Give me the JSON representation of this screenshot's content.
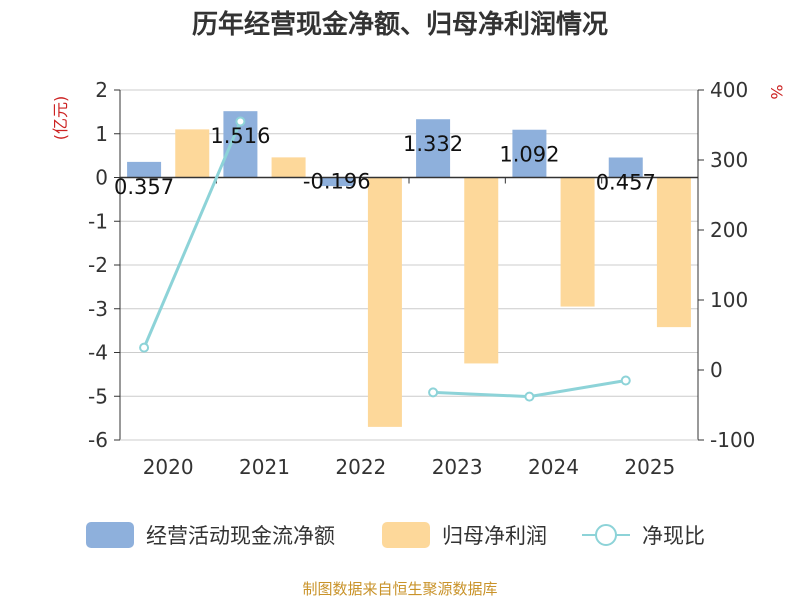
{
  "chart_data": {
    "type": "bar",
    "title": "历年经营现金净额、归母净利润情况",
    "categories": [
      "2020",
      "2021",
      "2022",
      "2023",
      "2024",
      "2025"
    ],
    "series": [
      {
        "name": "经营活动现金流净额",
        "type": "bar",
        "axis": "left",
        "color": "#8eb0dc",
        "values": [
          0.357,
          1.516,
          -0.196,
          1.332,
          1.092,
          0.457
        ],
        "labels": [
          "0.357",
          "1.516",
          "-0.196",
          "1.332",
          "1.092",
          "0.457"
        ]
      },
      {
        "name": "归母净利润",
        "type": "bar",
        "axis": "left",
        "color": "#fdd89a",
        "values": [
          1.1,
          0.46,
          -5.7,
          -4.25,
          -2.95,
          -3.42
        ]
      },
      {
        "name": "净现比",
        "type": "line",
        "axis": "right",
        "color": "#8dd3d8",
        "values": [
          32,
          355,
          null,
          -32,
          -38,
          -15
        ]
      }
    ],
    "yleft": {
      "unit": "(亿元)",
      "ylim": [
        -6,
        2
      ],
      "ticks": [
        2,
        1,
        0,
        -1,
        -2,
        -3,
        -4,
        -5,
        -6
      ]
    },
    "yright": {
      "unit": "%",
      "ylim": [
        -100,
        400
      ],
      "ticks": [
        400,
        300,
        200,
        100,
        0,
        -100
      ]
    },
    "legend_position": "bottom"
  },
  "colors": {
    "unit_text": "#cc2222",
    "source_text": "#c9932a"
  },
  "source": "制图数据来自恒生聚源数据库"
}
